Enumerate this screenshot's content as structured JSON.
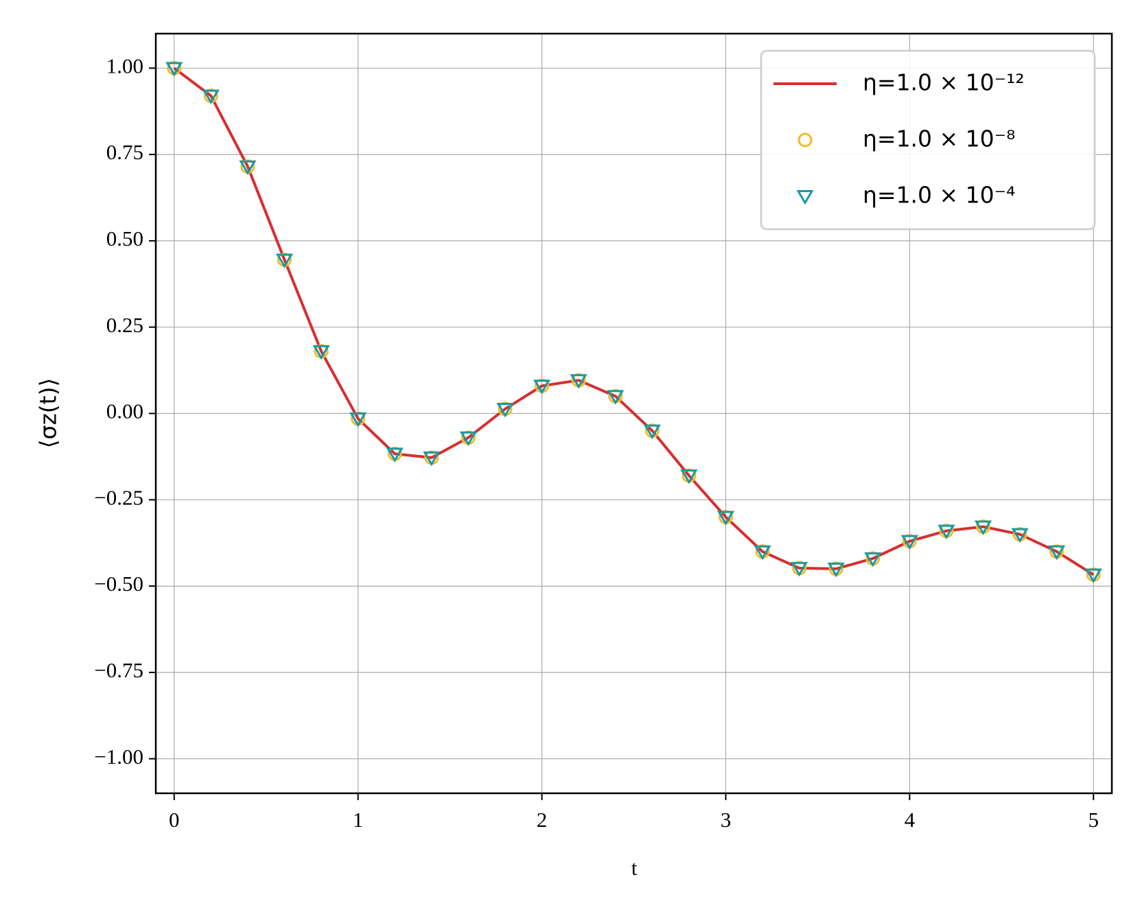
{
  "chart_data": {
    "type": "line",
    "x_label": "t",
    "y_label": "⟨σz(t)⟩",
    "x": [
      0,
      0.2,
      0.4,
      0.6,
      0.8,
      1.0,
      1.2,
      1.4,
      1.6,
      1.8,
      2.0,
      2.2,
      2.4,
      2.6,
      2.8,
      3.0,
      3.2,
      3.4,
      3.6,
      3.8,
      4.0,
      4.2,
      4.4,
      4.6,
      4.8,
      5.0
    ],
    "series": [
      {
        "name": "η=1.0 × 10⁻¹²",
        "color": "#d62f2f",
        "style": "line",
        "values": [
          1.0,
          0.92,
          0.715,
          0.445,
          0.18,
          -0.015,
          -0.117,
          -0.128,
          -0.07,
          0.013,
          0.08,
          0.096,
          0.05,
          -0.05,
          -0.18,
          -0.3,
          -0.4,
          -0.448,
          -0.45,
          -0.42,
          -0.37,
          -0.34,
          -0.328,
          -0.35,
          -0.4,
          -0.467
        ]
      },
      {
        "name": "η=1.0 × 10⁻⁸",
        "color": "#f5b82e",
        "style": "circle",
        "values": [
          1.0,
          0.92,
          0.715,
          0.445,
          0.18,
          -0.015,
          -0.117,
          -0.128,
          -0.07,
          0.013,
          0.08,
          0.096,
          0.05,
          -0.05,
          -0.18,
          -0.3,
          -0.4,
          -0.448,
          -0.45,
          -0.42,
          -0.37,
          -0.34,
          -0.328,
          -0.35,
          -0.4,
          -0.467
        ]
      },
      {
        "name": "η=1.0 × 10⁻⁴",
        "color": "#1a9aa0",
        "style": "triangle_down",
        "values": [
          1.0,
          0.92,
          0.715,
          0.445,
          0.18,
          -0.015,
          -0.117,
          -0.128,
          -0.07,
          0.013,
          0.08,
          0.096,
          0.05,
          -0.05,
          -0.18,
          -0.3,
          -0.4,
          -0.448,
          -0.45,
          -0.42,
          -0.37,
          -0.34,
          -0.328,
          -0.35,
          -0.4,
          -0.467
        ]
      }
    ],
    "xlim": [
      -0.1,
      5.1
    ],
    "ylim": [
      -1.1,
      1.1
    ],
    "xticks": [
      0,
      1,
      2,
      3,
      4,
      5
    ],
    "yticks": [
      {
        "value": 1.0,
        "label": "1.00"
      },
      {
        "value": 0.75,
        "label": "0.75"
      },
      {
        "value": 0.5,
        "label": "0.50"
      },
      {
        "value": 0.25,
        "label": "0.25"
      },
      {
        "value": 0.0,
        "label": "0.00"
      },
      {
        "value": -0.25,
        "label": "−0.25"
      },
      {
        "value": -0.5,
        "label": "−0.50"
      },
      {
        "value": -0.75,
        "label": "−0.75"
      },
      {
        "value": -1.0,
        "label": "−1.00"
      }
    ],
    "grid": true,
    "legend": "upper right"
  }
}
